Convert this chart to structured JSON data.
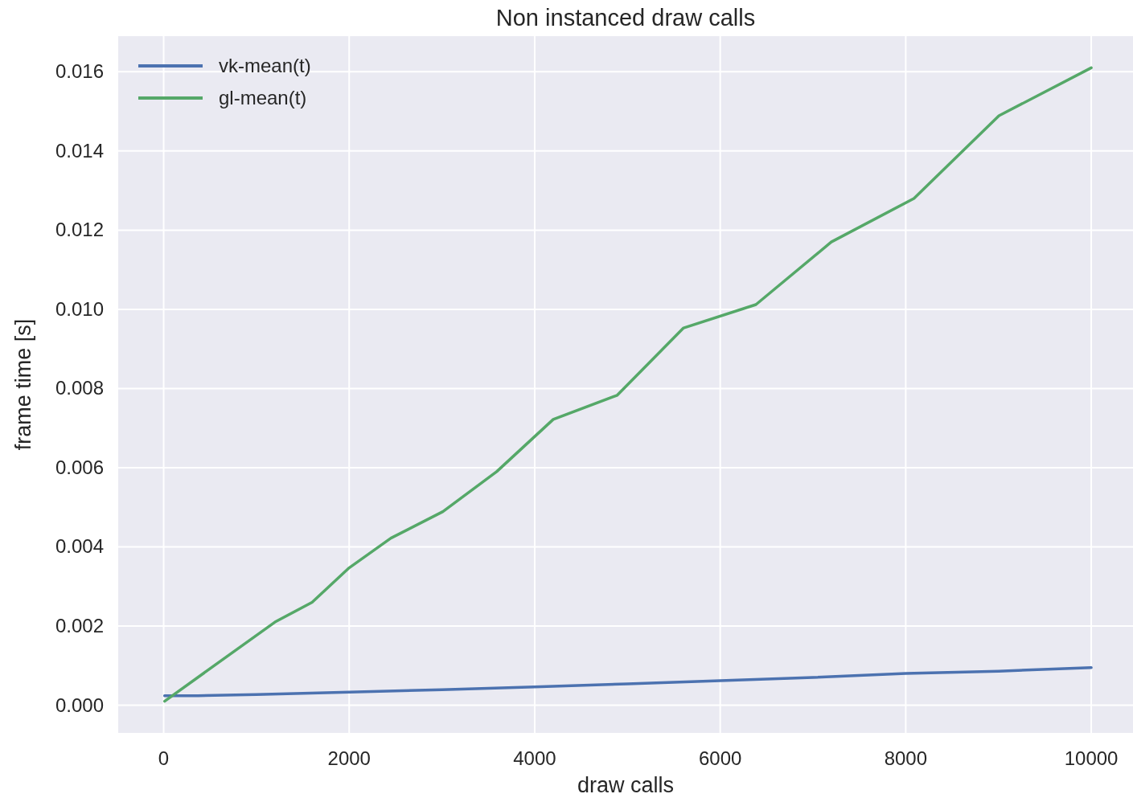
{
  "chart_data": {
    "type": "line",
    "title": "Non instanced draw calls",
    "xlabel": "draw calls",
    "ylabel": "frame time [s]",
    "series": [
      {
        "name": "vk-mean(t)",
        "color": "#4c72b0",
        "x": [
          10,
          370,
          1000,
          2000,
          3000,
          4000,
          5000,
          6000,
          7000,
          8000,
          9000,
          10000
        ],
        "values": [
          0.00024,
          0.00024,
          0.00027,
          0.00033,
          0.00039,
          0.00046,
          0.00054,
          0.00062,
          0.0007,
          0.0008,
          0.00086,
          0.00095
        ]
      },
      {
        "name": "gl-mean(t)",
        "color": "#55a868",
        "x": [
          10,
          1200,
          1600,
          2000,
          2450,
          3010,
          3590,
          4200,
          4890,
          5605,
          6385,
          7197,
          8088,
          9005,
          10000
        ],
        "values": [
          0.0001,
          0.0021,
          0.0026,
          0.00347,
          0.00422,
          0.00489,
          0.0059,
          0.00722,
          0.00783,
          0.00953,
          0.01012,
          0.0117,
          0.0128,
          0.01489,
          0.0161
        ]
      }
    ],
    "xlim": [
      -490,
      10450
    ],
    "ylim": [
      -0.0007,
      0.0169
    ],
    "xticks": [
      0,
      2000,
      4000,
      6000,
      8000,
      10000
    ],
    "yticks": [
      {
        "value": 0,
        "label": "0.000"
      },
      {
        "value": 0.002,
        "label": "0.002"
      },
      {
        "value": 0.004,
        "label": "0.004"
      },
      {
        "value": 0.006,
        "label": "0.006"
      },
      {
        "value": 0.008,
        "label": "0.008"
      },
      {
        "value": 0.01,
        "label": "0.010"
      },
      {
        "value": 0.012,
        "label": "0.012"
      },
      {
        "value": 0.014,
        "label": "0.014"
      },
      {
        "value": 0.016,
        "label": "0.016"
      }
    ],
    "grid": true,
    "legend": "top left",
    "line_style": "solid",
    "marker": "none"
  }
}
